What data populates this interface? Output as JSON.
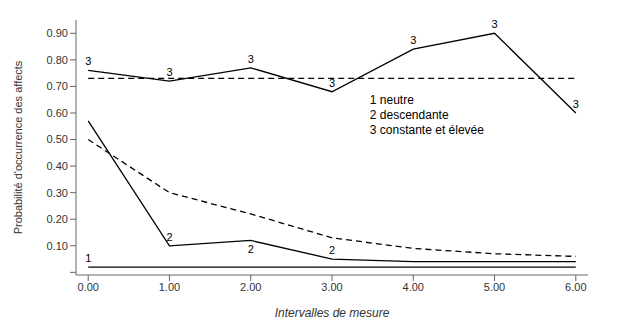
{
  "chart_data": {
    "type": "line",
    "xlabel": "Intervalles de mesure",
    "ylabel": "Probabilité d'occurrence des affects",
    "x": [
      0,
      1,
      2,
      3,
      4,
      5,
      6
    ],
    "series": [
      {
        "color": "#000000",
        "line_style": "dashed",
        "values": [
          0.73,
          0.73,
          0.73,
          0.73,
          0.73,
          0.73,
          0.73
        ]
      },
      {
        "color": "#000000",
        "line_style": "solid",
        "values": [
          0.76,
          0.72,
          0.77,
          0.68,
          0.84,
          0.9,
          0.6
        ]
      },
      {
        "color": "#000000",
        "line_style": "dashed",
        "values": [
          0.5,
          0.3,
          0.22,
          0.13,
          0.09,
          0.07,
          0.06
        ]
      },
      {
        "color": "#000000",
        "line_style": "solid",
        "values": [
          0.57,
          0.1,
          0.12,
          0.05,
          0.04,
          0.04,
          0.04
        ]
      },
      {
        "color": "#000000",
        "line_style": "solid",
        "values": [
          0.02,
          0.02,
          0.02,
          0.02,
          0.02,
          0.02,
          0.02
        ]
      }
    ],
    "xlim": [
      -0.15,
      6.15
    ],
    "xticks": [
      {
        "value": 0,
        "label": "0.00"
      },
      {
        "value": 1,
        "label": "1.00"
      },
      {
        "value": 2,
        "label": "2.00"
      },
      {
        "value": 3,
        "label": "3.00"
      },
      {
        "value": 4,
        "label": "4.00"
      },
      {
        "value": 5,
        "label": "5.00"
      },
      {
        "value": 6,
        "label": "6.00"
      }
    ],
    "ylim": [
      -0.01,
      0.95
    ],
    "yticks": [
      {
        "value": 0.0,
        "label": " "
      },
      {
        "value": 0.1,
        "label": "0.10"
      },
      {
        "value": 0.2,
        "label": "0.20"
      },
      {
        "value": 0.3,
        "label": "0.30"
      },
      {
        "value": 0.4,
        "label": "0.40"
      },
      {
        "value": 0.5,
        "label": "0.50"
      },
      {
        "value": 0.6,
        "label": "0.60"
      },
      {
        "value": 0.7,
        "label": "0.70"
      },
      {
        "value": 0.8,
        "label": "0.80"
      },
      {
        "value": 0.9,
        "label": "0.90"
      }
    ],
    "grid": false,
    "annotations": [
      {
        "text": "3",
        "x": 0,
        "y": 0.76
      },
      {
        "text": "3",
        "x": 1,
        "y": 0.72
      },
      {
        "text": "3",
        "x": 2,
        "y": 0.77
      },
      {
        "text": "3",
        "x": 3,
        "y": 0.68
      },
      {
        "text": "3",
        "x": 4,
        "y": 0.84
      },
      {
        "text": "3",
        "x": 5,
        "y": 0.9
      },
      {
        "text": "3",
        "x": 6,
        "y": 0.6
      },
      {
        "text": "2",
        "x": 1,
        "y": 0.1
      },
      {
        "text": "2",
        "x": 2,
        "y": 0.12
      },
      {
        "text": "2",
        "x": 3,
        "y": 0.05
      },
      {
        "text": "1",
        "x": 0,
        "y": 0.02
      },
      {
        "text": [
          "1 neutre",
          "2 descendante",
          "3 constante et élevée"
        ]
      }
    ]
  }
}
